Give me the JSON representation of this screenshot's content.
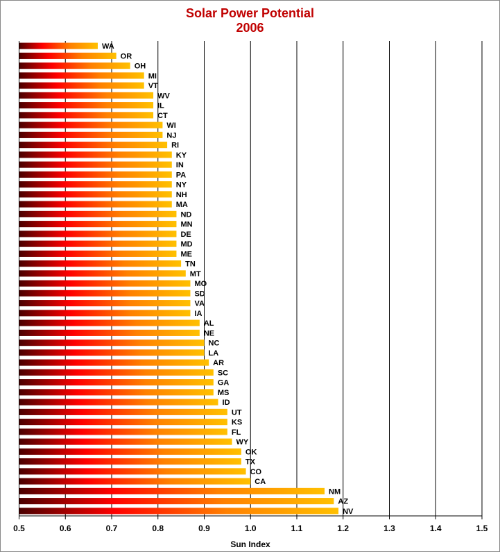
{
  "chart_data": {
    "type": "bar",
    "orientation": "horizontal",
    "title": "Solar Power Potential",
    "subtitle": "2006",
    "xlabel": "Sun Index",
    "ylabel": "",
    "xlim": [
      0.5,
      1.5
    ],
    "xticks": [
      "0.5",
      "0.6",
      "0.7",
      "0.8",
      "0.9",
      "1.0",
      "1.1",
      "1.2",
      "1.3",
      "1.4",
      "1.5"
    ],
    "grid": "vertical",
    "legend": "none",
    "bar_gradient": [
      "#4a0000",
      "#ff0000",
      "#ff8000",
      "#ffc000"
    ],
    "categories": [
      "WA",
      "OR",
      "OH",
      "MI",
      "VT",
      "WV",
      "IL",
      "CT",
      "WI",
      "NJ",
      "RI",
      "KY",
      "IN",
      "PA",
      "NY",
      "NH",
      "MA",
      "ND",
      "MN",
      "DE",
      "MD",
      "ME",
      "TN",
      "MT",
      "MO",
      "SD",
      "VA",
      "IA",
      "AL",
      "NE",
      "NC",
      "LA",
      "AR",
      "SC",
      "GA",
      "MS",
      "ID",
      "UT",
      "KS",
      "FL",
      "WY",
      "OK",
      "TX",
      "CO",
      "CA",
      "NM",
      "AZ",
      "NV"
    ],
    "values": [
      0.67,
      0.71,
      0.74,
      0.77,
      0.77,
      0.79,
      0.79,
      0.79,
      0.81,
      0.81,
      0.82,
      0.83,
      0.83,
      0.83,
      0.83,
      0.83,
      0.83,
      0.84,
      0.84,
      0.84,
      0.84,
      0.84,
      0.85,
      0.86,
      0.87,
      0.87,
      0.87,
      0.87,
      0.89,
      0.89,
      0.9,
      0.9,
      0.91,
      0.92,
      0.92,
      0.92,
      0.93,
      0.95,
      0.95,
      0.95,
      0.96,
      0.98,
      0.98,
      0.99,
      1.0,
      1.16,
      1.18,
      1.19
    ]
  }
}
